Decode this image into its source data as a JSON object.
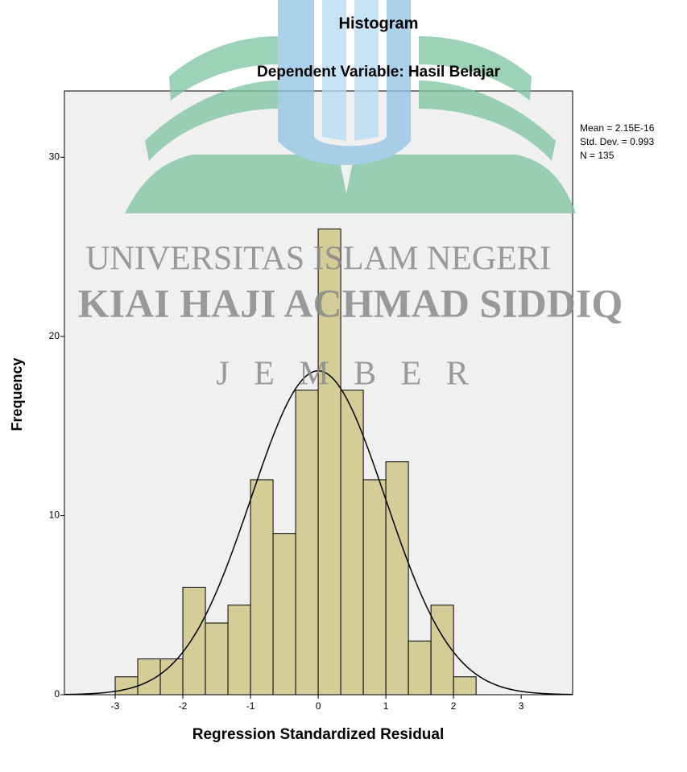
{
  "chart_data": {
    "type": "histogram",
    "title": "Histogram",
    "subtitle": "Dependent Variable: Hasil Belajar",
    "x_label": "Regression Standardized Residual",
    "y_label": "Frequency",
    "bins": [
      -3,
      -2.6667,
      -2.3333,
      -2,
      -1.6667,
      -1.3333,
      -1,
      -0.6667,
      -0.3333,
      0,
      0.3333,
      0.6667,
      1,
      1.3333,
      1.6667,
      2,
      2.3333
    ],
    "counts": [
      1,
      2,
      2,
      6,
      4,
      5,
      12,
      9,
      17,
      26,
      17,
      12,
      13,
      3,
      5,
      1
    ],
    "color": "#d4cd98",
    "xlim": [
      -3.75,
      3.76
    ],
    "ylim": [
      0,
      33.7
    ],
    "xticks": [
      -3,
      -2,
      -1,
      0,
      1,
      2,
      3
    ],
    "yticks": [
      0,
      10,
      20,
      30
    ],
    "normal_curve": true,
    "stats": {
      "mean": {
        "value": 2.15e-16,
        "label": "Mean = 2.15E-16"
      },
      "std_dev": {
        "value": 0.993,
        "label": "Std. Dev. = 0.993"
      },
      "n": {
        "value": 135,
        "label": "N = 135"
      }
    }
  },
  "watermark": {
    "lines": [
      "UNIVERSITAS ISLAM NEGERI",
      "KIAI HAJI ACHMAD SIDDIQ",
      "J E M B E R"
    ]
  }
}
